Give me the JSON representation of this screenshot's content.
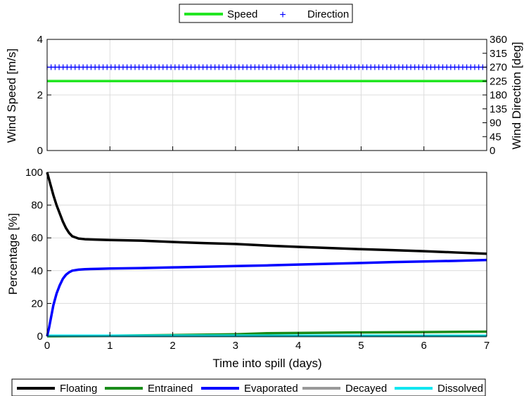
{
  "chart_data": [
    {
      "type": "line",
      "ylabel_left": "Wind Speed [m/s]",
      "ylabel_right": "Wind Direction [deg]",
      "ylim_left": [
        0,
        4
      ],
      "ylim_right": [
        0,
        360
      ],
      "xlim": [
        0,
        7
      ],
      "yticks_left": [
        "0",
        "2",
        "4"
      ],
      "yticks_right": [
        "0",
        "45",
        "90",
        "135",
        "180",
        "225",
        "270",
        "315",
        "360"
      ],
      "grid": true,
      "legend": {
        "placement": "top-center",
        "entries": [
          "Speed",
          "Direction"
        ]
      },
      "series": [
        {
          "name": "Speed",
          "color": "#22e622",
          "marker": "line",
          "axis": "left",
          "x": [
            0,
            7
          ],
          "values": [
            2.5,
            2.5
          ]
        },
        {
          "name": "Direction",
          "color": "#0000ff",
          "marker": "plus",
          "axis": "right",
          "x": [
            0,
            7
          ],
          "values": [
            270,
            270
          ]
        }
      ]
    },
    {
      "type": "line",
      "xlabel": "Time into spill (days)",
      "ylabel": "Percentage  [%]",
      "xlim": [
        0,
        7
      ],
      "ylim": [
        0,
        100
      ],
      "xticks": [
        "0",
        "1",
        "2",
        "3",
        "4",
        "5",
        "6",
        "7"
      ],
      "yticks": [
        "0",
        "20",
        "40",
        "60",
        "80",
        "100"
      ],
      "grid": true,
      "legend": {
        "placement": "bottom-center",
        "entries": [
          "Floating",
          "Entrained",
          "Evaporated",
          "Decayed",
          "Dissolved"
        ]
      },
      "series": [
        {
          "name": "Floating",
          "color": "#000000",
          "x": [
            0,
            0.05,
            0.1,
            0.15,
            0.2,
            0.25,
            0.3,
            0.35,
            0.4,
            0.5,
            0.6,
            0.8,
            1,
            1.5,
            2,
            2.5,
            3,
            3.5,
            4,
            4.5,
            5,
            5.5,
            6,
            6.5,
            7
          ],
          "values": [
            100,
            93,
            86,
            80,
            75,
            70,
            66,
            63,
            61,
            59.6,
            59.2,
            58.9,
            58.7,
            58.3,
            57.5,
            56.8,
            56.3,
            55.3,
            54.5,
            53.8,
            53.1,
            52.5,
            51.9,
            51.1,
            50.3
          ]
        },
        {
          "name": "Entrained",
          "color": "#1a8c1a",
          "x": [
            0,
            1,
            2,
            3,
            3.5,
            4,
            5,
            6,
            7
          ],
          "values": [
            0,
            0.3,
            0.7,
            1.2,
            1.8,
            2.0,
            2.3,
            2.5,
            2.8
          ]
        },
        {
          "name": "Evaporated",
          "color": "#0000ff",
          "x": [
            0,
            0.03,
            0.06,
            0.1,
            0.15,
            0.2,
            0.25,
            0.3,
            0.35,
            0.4,
            0.5,
            0.6,
            0.8,
            1,
            1.5,
            2,
            2.5,
            3,
            3.5,
            4,
            4.5,
            5,
            5.5,
            6,
            6.5,
            7
          ],
          "values": [
            0,
            5,
            11,
            19,
            26,
            31,
            35,
            37.5,
            39,
            40,
            40.6,
            40.9,
            41.1,
            41.3,
            41.6,
            42,
            42.4,
            42.8,
            43.2,
            43.7,
            44.2,
            44.7,
            45.2,
            45.6,
            46,
            46.5
          ]
        },
        {
          "name": "Decayed",
          "color": "#999999",
          "x": [
            0,
            7
          ],
          "values": [
            0,
            0
          ]
        },
        {
          "name": "Dissolved",
          "color": "#11e6f0",
          "x": [
            0,
            7
          ],
          "values": [
            0.3,
            0.3
          ]
        }
      ]
    }
  ]
}
